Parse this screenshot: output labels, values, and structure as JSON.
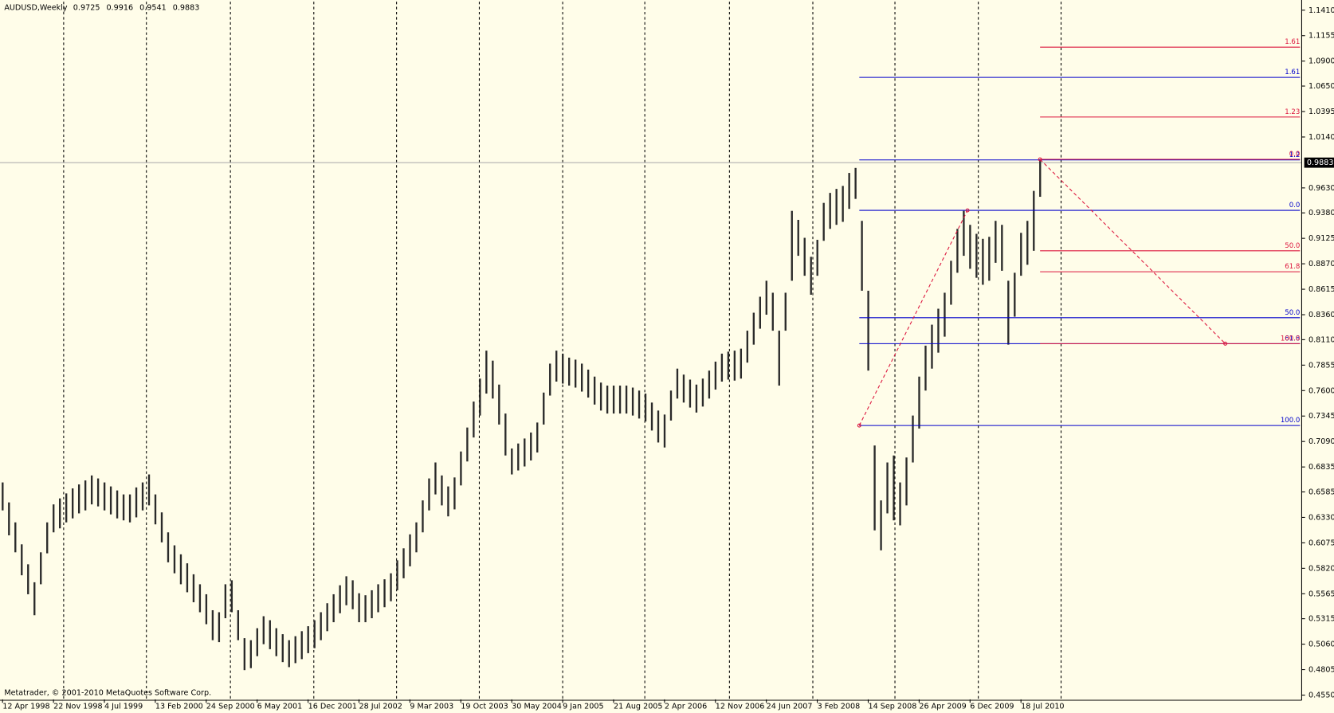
{
  "chart_data": {
    "type": "hilo",
    "title": "AUDUSD,Weekly",
    "header_values": [
      0.9725,
      0.9916,
      0.9541,
      0.9883
    ],
    "footer": "Metatrader, © 2001-2010 MetaQuotes Software Corp.",
    "background": "#fffde9",
    "grid": false,
    "xlim": [
      0,
      204.1
    ],
    "ylim": [
      0.4507,
      1.1495
    ],
    "xticks": [
      {
        "value": 0,
        "label": "12 Apr 1998"
      },
      {
        "value": 8,
        "label": "22 Nov 1998"
      },
      {
        "value": 16,
        "label": "4 Jul 1999"
      },
      {
        "value": 24,
        "label": "13 Feb 2000"
      },
      {
        "value": 32,
        "label": "24 Sep 2000"
      },
      {
        "value": 40,
        "label": "6 May 2001"
      },
      {
        "value": 48,
        "label": "16 Dec 2001"
      },
      {
        "value": 56,
        "label": "28 Jul 2002"
      },
      {
        "value": 64,
        "label": "9 Mar 2003"
      },
      {
        "value": 72,
        "label": "19 Oct 2003"
      },
      {
        "value": 80,
        "label": "30 May 2004"
      },
      {
        "value": 88,
        "label": "9 Jan 2005"
      },
      {
        "value": 96,
        "label": "21 Aug 2005"
      },
      {
        "value": 104,
        "label": "2 Apr 2006"
      },
      {
        "value": 112,
        "label": "12 Nov 2006"
      },
      {
        "value": 120,
        "label": "24 Jun 2007"
      },
      {
        "value": 128,
        "label": "3 Feb 2008"
      },
      {
        "value": 136,
        "label": "14 Sep 2008"
      },
      {
        "value": 144,
        "label": "26 Apr 2009"
      },
      {
        "value": 152,
        "label": "6 Dec 2009"
      },
      {
        "value": 160,
        "label": "18 Jul 2010"
      }
    ],
    "yticks": [
      {
        "value": 1.141,
        "label": "1.1410"
      },
      {
        "value": 1.1155,
        "label": "1.1155"
      },
      {
        "value": 1.09,
        "label": "1.0900"
      },
      {
        "value": 1.065,
        "label": "1.0650"
      },
      {
        "value": 1.0395,
        "label": "1.0395"
      },
      {
        "value": 1.014,
        "label": "1.0140"
      },
      {
        "value": 0.963,
        "label": "0.9630"
      },
      {
        "value": 0.938,
        "label": "0.9380"
      },
      {
        "value": 0.9125,
        "label": "0.9125"
      },
      {
        "value": 0.887,
        "label": "0.8870"
      },
      {
        "value": 0.8615,
        "label": "0.8615"
      },
      {
        "value": 0.836,
        "label": "0.8360"
      },
      {
        "value": 0.811,
        "label": "0.8110"
      },
      {
        "value": 0.7855,
        "label": "0.7855"
      },
      {
        "value": 0.76,
        "label": "0.7600"
      },
      {
        "value": 0.7345,
        "label": "0.7345"
      },
      {
        "value": 0.709,
        "label": "0.7090"
      },
      {
        "value": 0.6835,
        "label": "0.6835"
      },
      {
        "value": 0.6585,
        "label": "0.6585"
      },
      {
        "value": 0.633,
        "label": "0.6330"
      },
      {
        "value": 0.6075,
        "label": "0.6075"
      },
      {
        "value": 0.582,
        "label": "0.5820"
      },
      {
        "value": 0.5565,
        "label": "0.5565"
      },
      {
        "value": 0.5315,
        "label": "0.5315"
      },
      {
        "value": 0.506,
        "label": "0.5060"
      },
      {
        "value": 0.4805,
        "label": "0.4805"
      },
      {
        "value": 0.455,
        "label": "0.4550"
      }
    ],
    "current_price": 0.9883,
    "separators": [
      9.6,
      22.6,
      35.8,
      48.9,
      61.9,
      74.9,
      88.0,
      100.9,
      114.2,
      127.3,
      140.2,
      153.3,
      166.3
    ],
    "series": [
      {
        "name": "AUDUSD",
        "color": "#2a2a2a",
        "low": [
          0.64,
          0.615,
          0.598,
          0.575,
          0.556,
          0.535,
          0.566,
          0.597,
          0.618,
          0.622,
          0.628,
          0.632,
          0.637,
          0.64,
          0.646,
          0.644,
          0.64,
          0.636,
          0.632,
          0.63,
          0.628,
          0.633,
          0.64,
          0.645,
          0.626,
          0.608,
          0.588,
          0.577,
          0.566,
          0.558,
          0.548,
          0.538,
          0.526,
          0.51,
          0.508,
          0.532,
          0.538,
          0.51,
          0.48,
          0.482,
          0.494,
          0.506,
          0.501,
          0.494,
          0.488,
          0.483,
          0.487,
          0.491,
          0.497,
          0.502,
          0.51,
          0.519,
          0.528,
          0.537,
          0.545,
          0.541,
          0.528,
          0.528,
          0.532,
          0.538,
          0.543,
          0.549,
          0.56,
          0.572,
          0.584,
          0.598,
          0.618,
          0.64,
          0.656,
          0.645,
          0.634,
          0.641,
          0.665,
          0.689,
          0.713,
          0.735,
          0.757,
          0.752,
          0.726,
          0.695,
          0.676,
          0.68,
          0.684,
          0.69,
          0.698,
          0.726,
          0.755,
          0.769,
          0.767,
          0.765,
          0.763,
          0.759,
          0.753,
          0.746,
          0.74,
          0.737,
          0.737,
          0.737,
          0.737,
          0.735,
          0.732,
          0.729,
          0.72,
          0.708,
          0.703,
          0.73,
          0.752,
          0.748,
          0.743,
          0.738,
          0.744,
          0.752,
          0.761,
          0.769,
          0.771,
          0.77,
          0.772,
          0.788,
          0.806,
          0.822,
          0.836,
          0.82,
          0.765,
          0.82,
          0.87,
          0.895,
          0.875,
          0.856,
          0.875,
          0.91,
          0.922,
          0.926,
          0.929,
          0.942,
          0.952,
          0.86,
          0.78,
          0.62,
          0.6,
          0.637,
          0.63,
          0.625,
          0.645,
          0.688,
          0.722,
          0.76,
          0.782,
          0.798,
          0.814,
          0.846,
          0.878,
          0.895,
          0.882,
          0.873,
          0.866,
          0.87,
          0.888,
          0.88,
          0.806,
          0.834,
          0.875,
          0.886,
          0.9,
          0.9541
        ],
        "high": [
          0.668,
          0.648,
          0.628,
          0.606,
          0.586,
          0.568,
          0.598,
          0.628,
          0.646,
          0.652,
          0.657,
          0.662,
          0.666,
          0.67,
          0.675,
          0.672,
          0.668,
          0.664,
          0.66,
          0.656,
          0.656,
          0.663,
          0.668,
          0.676,
          0.656,
          0.638,
          0.618,
          0.605,
          0.596,
          0.587,
          0.576,
          0.566,
          0.556,
          0.54,
          0.538,
          0.566,
          0.57,
          0.54,
          0.512,
          0.51,
          0.522,
          0.534,
          0.53,
          0.522,
          0.516,
          0.51,
          0.514,
          0.519,
          0.524,
          0.53,
          0.538,
          0.547,
          0.556,
          0.565,
          0.574,
          0.57,
          0.557,
          0.555,
          0.56,
          0.566,
          0.571,
          0.577,
          0.59,
          0.602,
          0.616,
          0.628,
          0.65,
          0.672,
          0.688,
          0.675,
          0.664,
          0.673,
          0.699,
          0.723,
          0.749,
          0.772,
          0.8,
          0.79,
          0.766,
          0.737,
          0.702,
          0.707,
          0.712,
          0.718,
          0.728,
          0.758,
          0.787,
          0.8,
          0.797,
          0.793,
          0.791,
          0.787,
          0.781,
          0.774,
          0.768,
          0.765,
          0.765,
          0.765,
          0.765,
          0.763,
          0.76,
          0.757,
          0.748,
          0.74,
          0.736,
          0.76,
          0.782,
          0.776,
          0.771,
          0.766,
          0.772,
          0.78,
          0.789,
          0.797,
          0.799,
          0.8,
          0.802,
          0.82,
          0.838,
          0.854,
          0.87,
          0.858,
          0.82,
          0.858,
          0.94,
          0.931,
          0.913,
          0.894,
          0.911,
          0.948,
          0.958,
          0.962,
          0.965,
          0.978,
          0.983,
          0.93,
          0.86,
          0.705,
          0.65,
          0.688,
          0.695,
          0.668,
          0.693,
          0.735,
          0.774,
          0.805,
          0.826,
          0.842,
          0.858,
          0.89,
          0.922,
          0.94,
          0.926,
          0.917,
          0.912,
          0.914,
          0.93,
          0.926,
          0.87,
          0.878,
          0.918,
          0.93,
          0.96,
          0.9916
        ]
      }
    ],
    "fibs": [
      {
        "color": "#0000cc",
        "from": [
          134.6,
          0.725
        ],
        "to": [
          151.6,
          0.9405
        ],
        "levels": [
          {
            "price": 1.0737,
            "label": "1.61"
          },
          {
            "price": 0.991,
            "label": "1.2"
          },
          {
            "price": 0.9405,
            "label": "0.0"
          },
          {
            "price": 0.833,
            "label": "50.0"
          },
          {
            "price": 0.807,
            "label": "61.8"
          },
          {
            "price": 0.725,
            "label": "100.0"
          }
        ]
      },
      {
        "color": "#dc143c",
        "from": [
          163,
          0.9916
        ],
        "to": [
          192.1,
          0.807
        ],
        "levels": [
          {
            "price": 1.104,
            "label": "1.61"
          },
          {
            "price": 1.034,
            "label": "1.23"
          },
          {
            "price": 0.9916,
            "label": "0.0"
          },
          {
            "price": 0.9,
            "label": "50.0"
          },
          {
            "price": 0.879,
            "label": "61.8"
          },
          {
            "price": 0.807,
            "label": "100.0"
          }
        ]
      }
    ]
  }
}
